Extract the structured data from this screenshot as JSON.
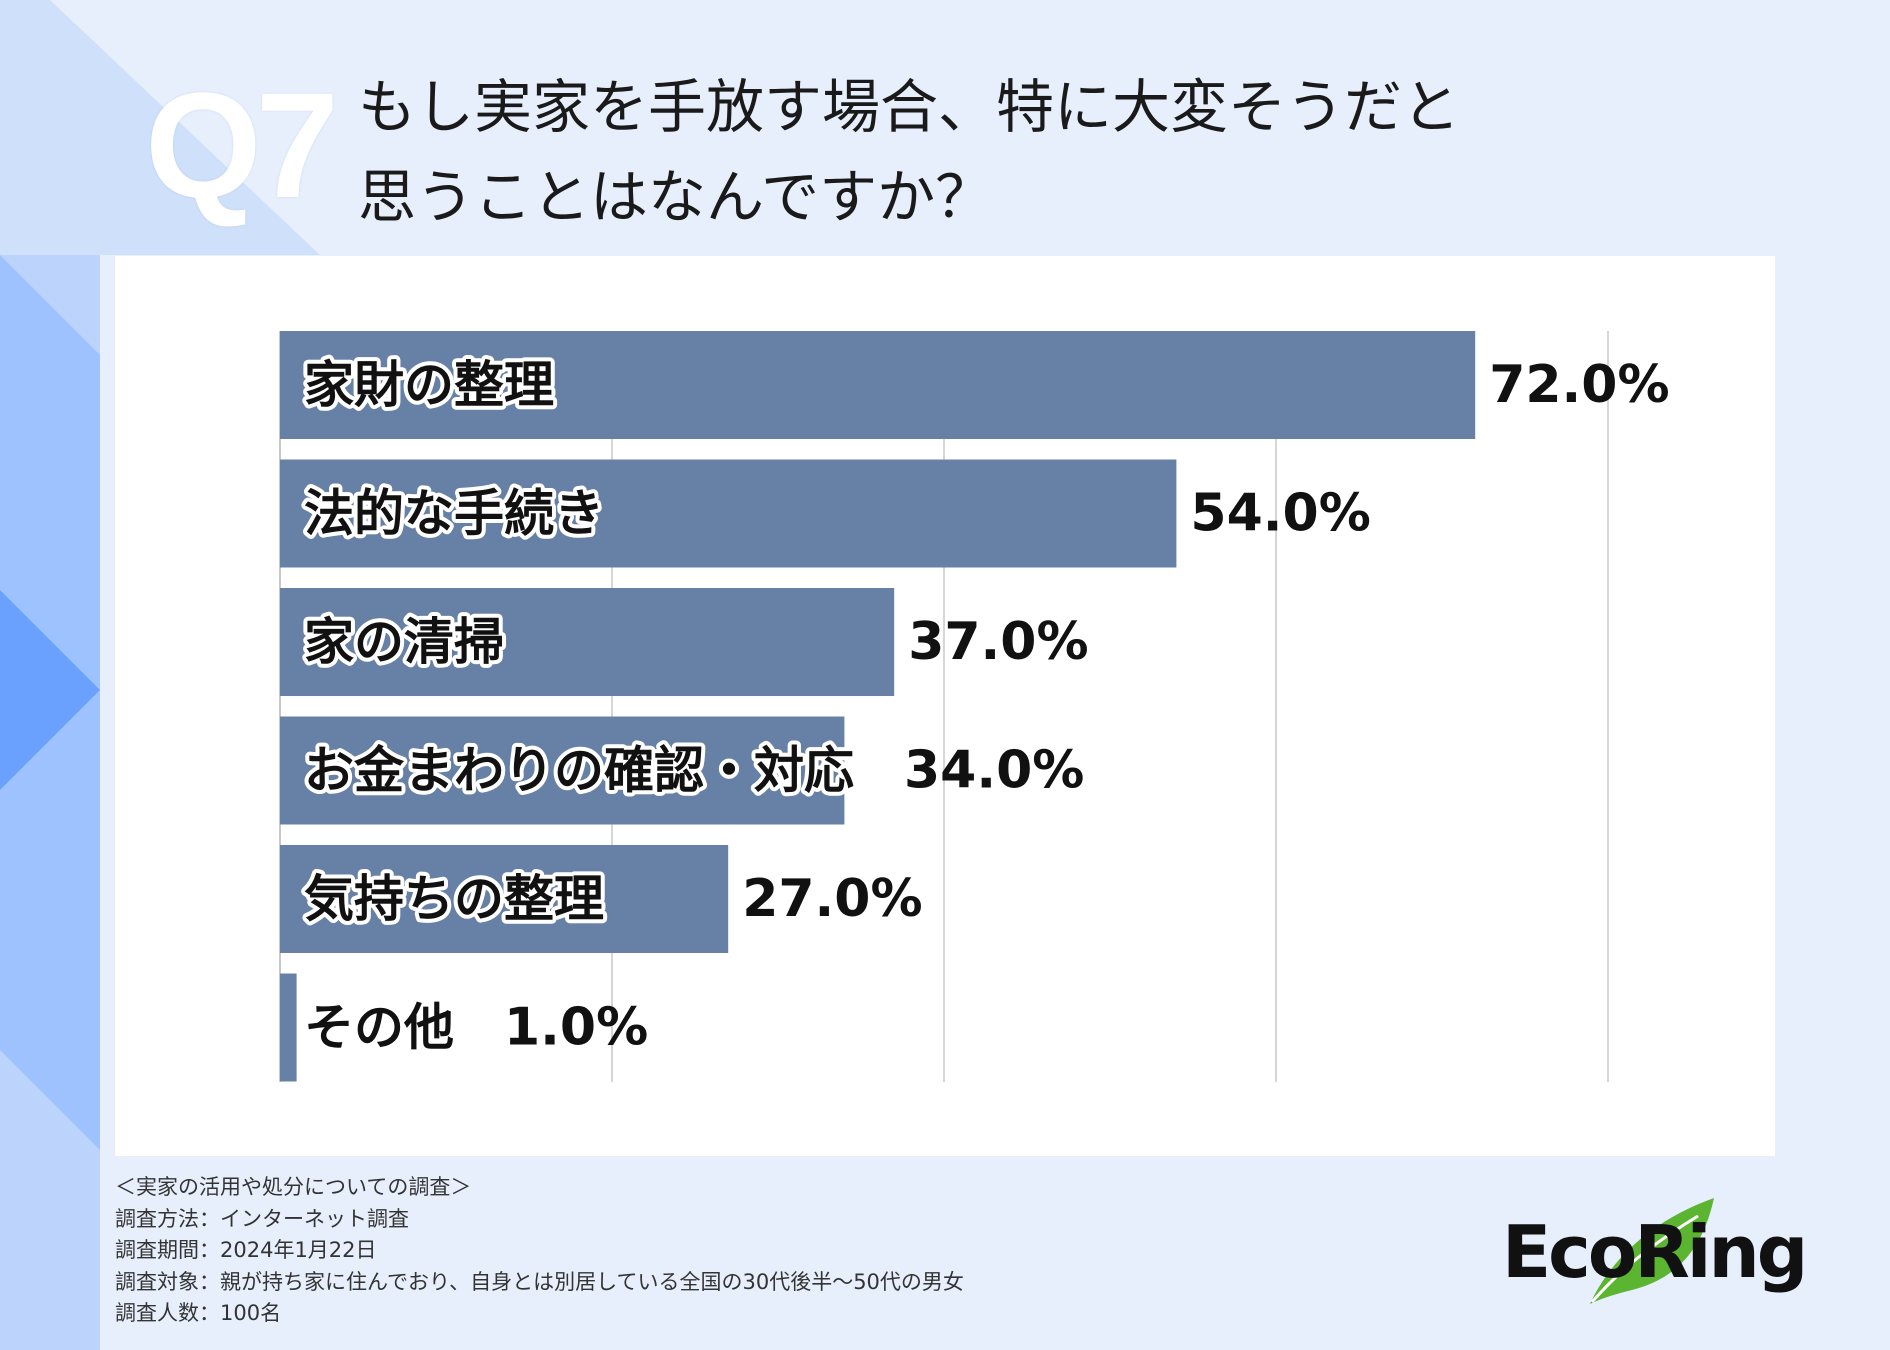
{
  "header": {
    "badge": "Q7",
    "title_line1": "もし実家を手放す場合、特に大変そうだと",
    "title_line2": "思うことはなんですか？"
  },
  "colors": {
    "bar": "#6780a6",
    "background": "#e7effd",
    "accent_blue": "#6aa1ff",
    "logo_leaf": "#5cb531"
  },
  "chart_data": {
    "type": "bar",
    "orientation": "horizontal",
    "categories": [
      "家財の整理",
      "法的な手続き",
      "家の清掃",
      "お金まわりの確認・対応",
      "気持ちの整理",
      "その他"
    ],
    "values": [
      72.0,
      54.0,
      37.0,
      34.0,
      27.0,
      1.0
    ],
    "value_labels": [
      "72.0%",
      "54.0%",
      "37.0%",
      "34.0%",
      "27.0%",
      "1.0%"
    ],
    "xlim": [
      0,
      80
    ],
    "grid": true,
    "grid_step": 20,
    "title": "",
    "xlabel": "",
    "ylabel": ""
  },
  "footnote": {
    "line1": "＜実家の活用や処分についての調査＞",
    "line2": "調査方法：インターネット調査",
    "line3": "調査期間：2024年1月22日",
    "line4": "調査対象：親が持ち家に住んでおり、自身とは別居している全国の30代後半〜50代の男女",
    "line5": "調査人数：100名"
  },
  "logo": {
    "text": "EcoRing",
    "icon": "leaf-icon"
  }
}
